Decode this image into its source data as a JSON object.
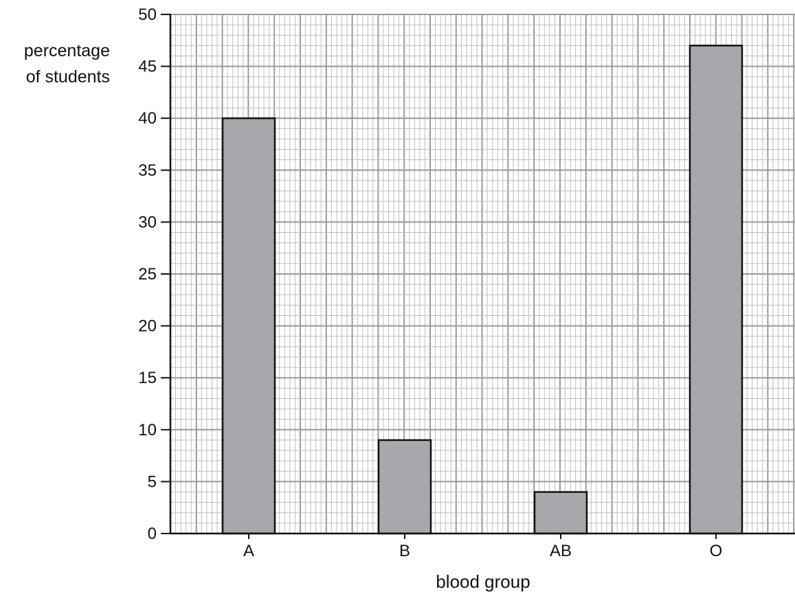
{
  "chart_data": {
    "type": "bar",
    "categories": [
      "A",
      "B",
      "AB",
      "O"
    ],
    "values": [
      40,
      9,
      4,
      47
    ],
    "title": "",
    "xlabel": "blood group",
    "ylabel_lines": [
      "percentage",
      "of students"
    ],
    "ylim": [
      0,
      50
    ],
    "yticks": [
      0,
      5,
      10,
      15,
      20,
      25,
      30,
      35,
      40,
      45,
      50
    ],
    "grid": true,
    "legend": "none",
    "colors": {
      "bar_fill": "#a7a8ab",
      "bar_stroke": "#111111",
      "grid_minor": "#bdbdbd",
      "grid_major": "#9a9a9a",
      "axis": "#111111"
    }
  }
}
